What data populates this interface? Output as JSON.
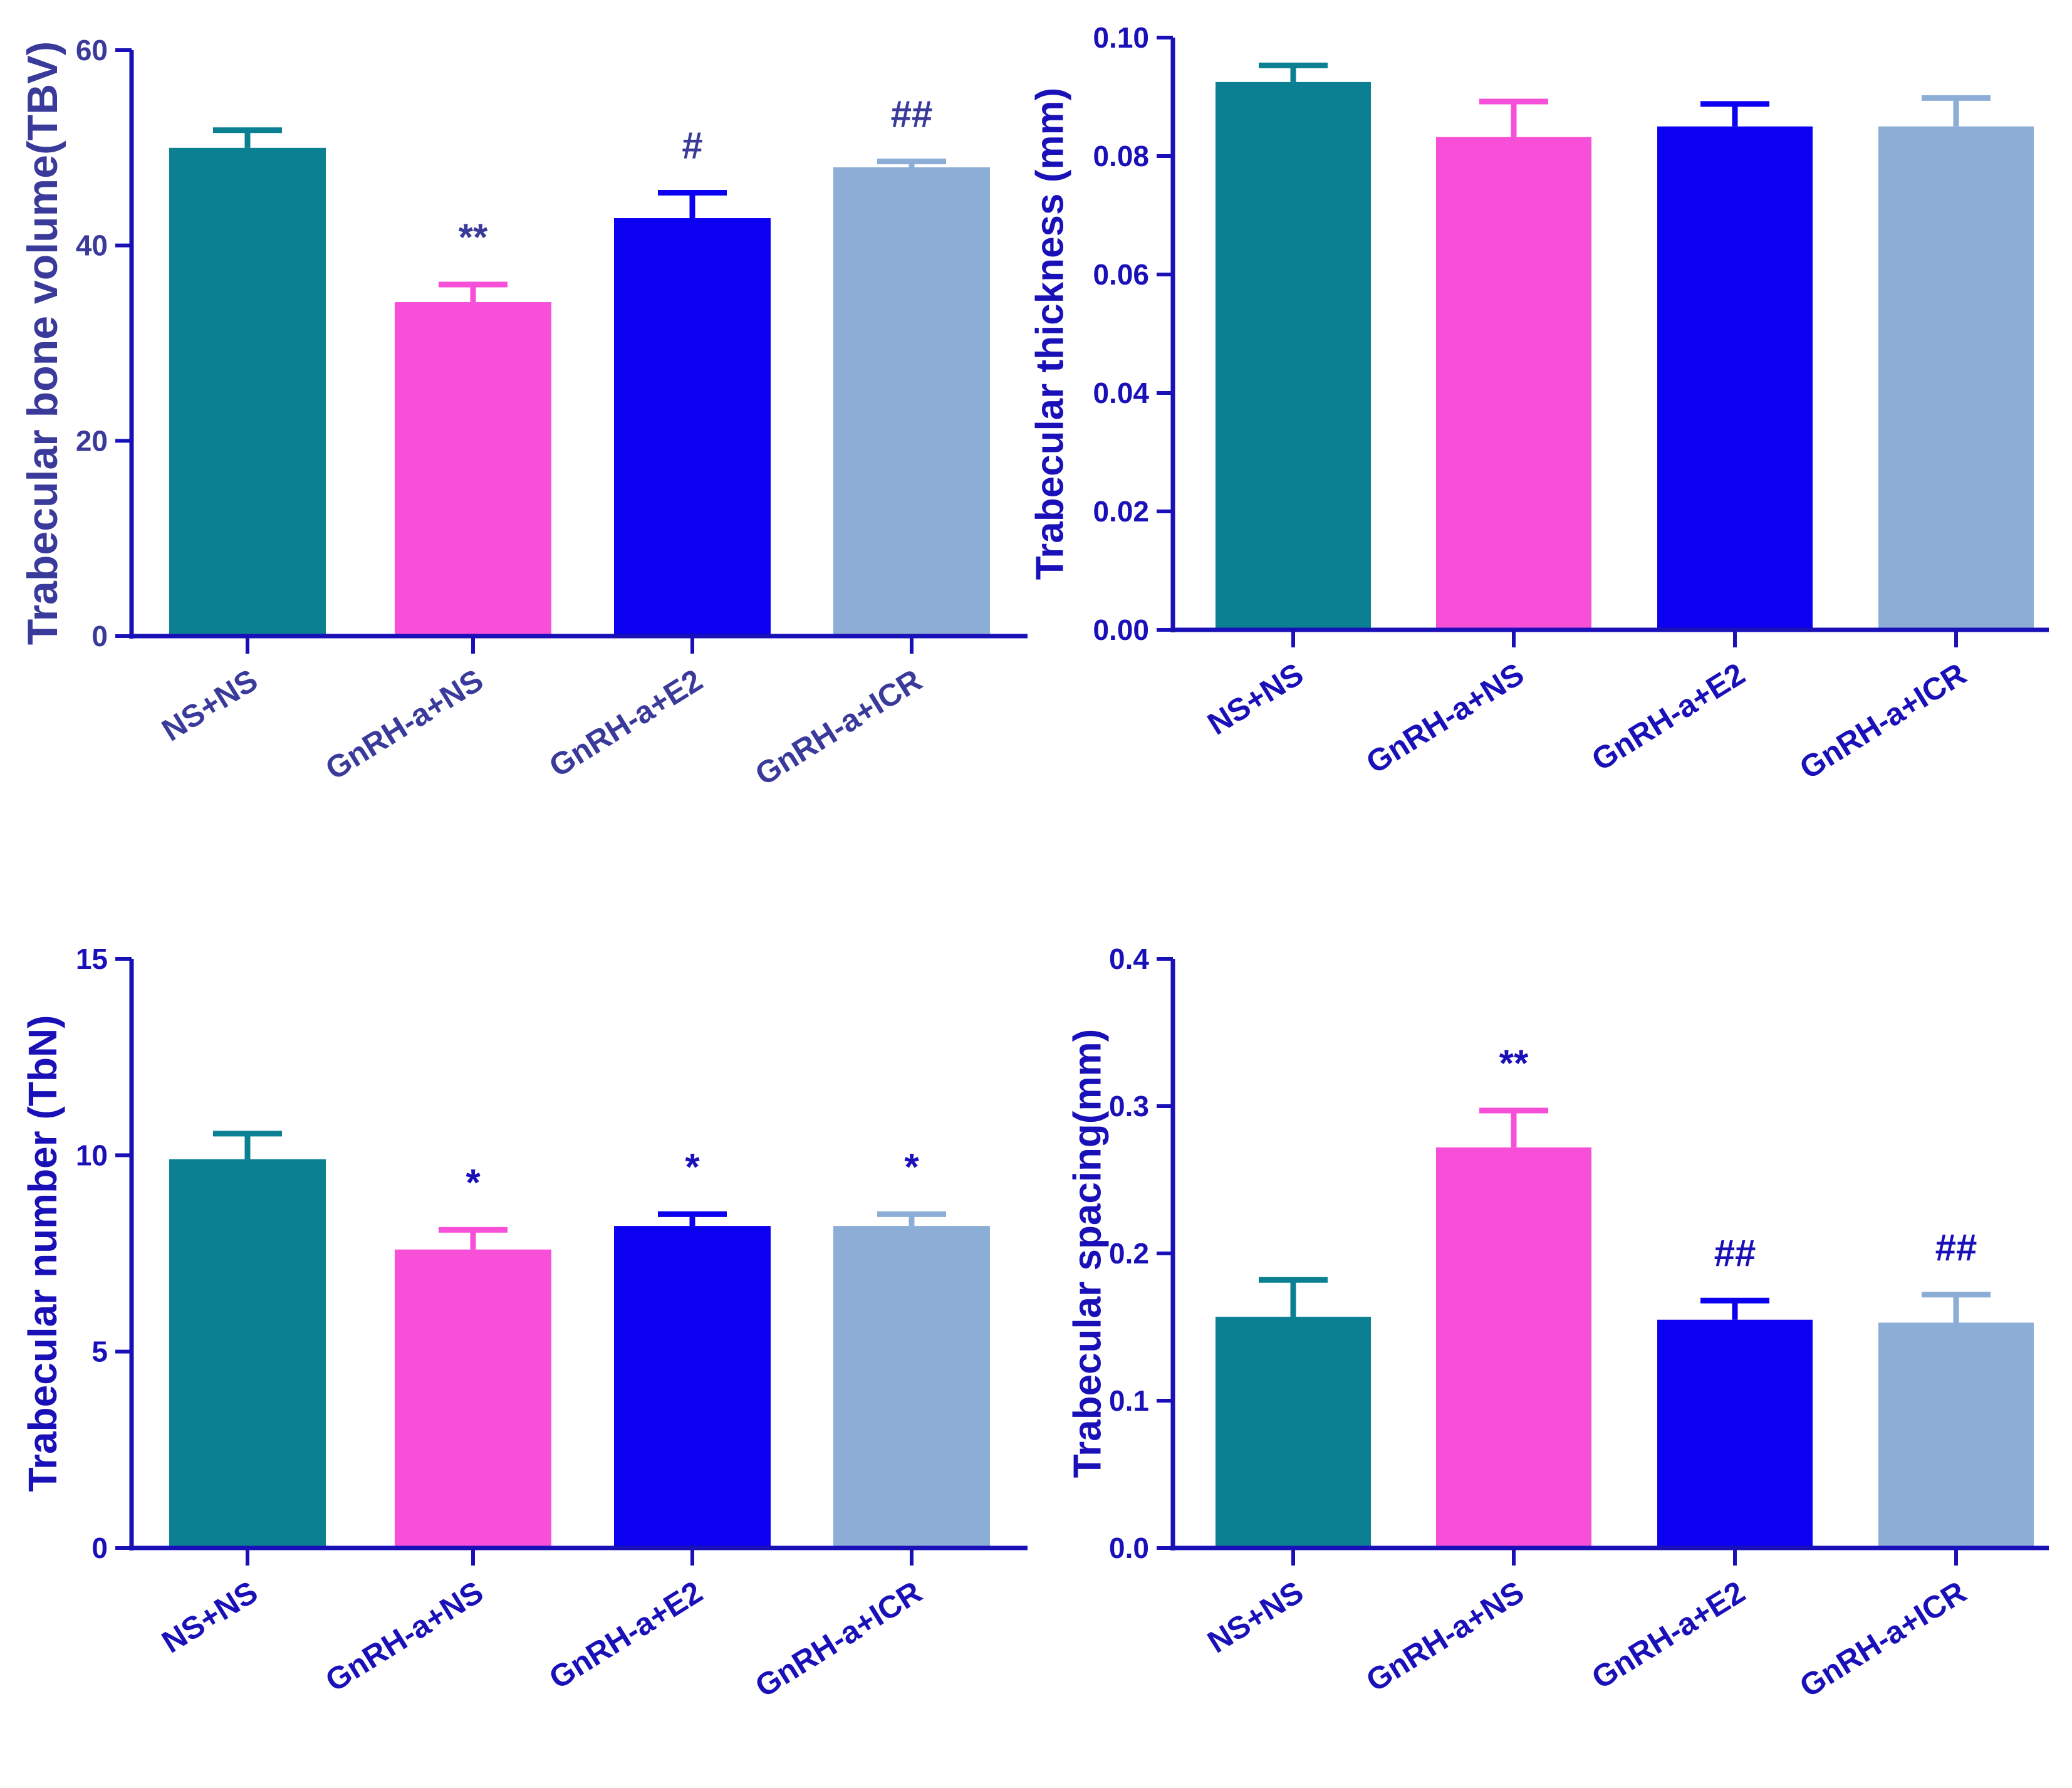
{
  "colors": {
    "axis": "#1a10b8",
    "text": "#1a10b8",
    "text_faded": "#3a3a9a",
    "group_colors": [
      "#0c8093",
      "#f84fd8",
      "#0b00f0",
      "#8caed6"
    ]
  },
  "chart_data": [
    {
      "type": "bar",
      "title": "",
      "ylabel": "Trabecular bone volume(TBV)",
      "xlabel": "",
      "categories": [
        "NS+NS",
        "GnRH-a+NS",
        "GnRH-a+E2",
        "GnRH-a+ICR"
      ],
      "values": [
        50,
        34.2,
        42.8,
        48
      ],
      "errors": [
        1.8,
        1.8,
        2.6,
        0.6
      ],
      "annotations": [
        "",
        "**",
        "#",
        "##"
      ],
      "ylim": [
        0,
        60
      ],
      "yticks": [
        "0",
        "20",
        "40",
        "60"
      ],
      "ytick_values": [
        0,
        20,
        40,
        60
      ]
    },
    {
      "type": "bar",
      "title": "",
      "ylabel": "Trabecular thickness (mm)",
      "xlabel": "",
      "categories": [
        "NS+NS",
        "GnRH-a+NS",
        "GnRH-a+E2",
        "GnRH-a+ICR"
      ],
      "values": [
        0.0925,
        0.0832,
        0.085,
        0.085
      ],
      "errors": [
        0.0028,
        0.006,
        0.0038,
        0.0048
      ],
      "annotations": [
        "",
        "",
        "",
        ""
      ],
      "ylim": [
        0,
        0.1
      ],
      "yticks": [
        "0.00",
        "0.02",
        "0.04",
        "0.06",
        "0.08",
        "0.10"
      ],
      "ytick_values": [
        0,
        0.02,
        0.04,
        0.06,
        0.08,
        0.1
      ]
    },
    {
      "type": "bar",
      "title": "",
      "ylabel": "Trabecular number (TbN)",
      "xlabel": "",
      "categories": [
        "NS+NS",
        "GnRH-a+NS",
        "GnRH-a+E2",
        "GnRH-a+ICR"
      ],
      "values": [
        9.9,
        7.6,
        8.2,
        8.2
      ],
      "errors": [
        0.65,
        0.5,
        0.3,
        0.3
      ],
      "annotations": [
        "",
        "*",
        "*",
        "*"
      ],
      "ylim": [
        0,
        15
      ],
      "yticks": [
        "0",
        "5",
        "10",
        "15"
      ],
      "ytick_values": [
        0,
        5,
        10,
        15
      ]
    },
    {
      "type": "bar",
      "title": "",
      "ylabel": "Trabecular spacing(mm)",
      "xlabel": "",
      "categories": [
        "NS+NS",
        "GnRH-a+NS",
        "GnRH-a+E2",
        "GnRH-a+ICR"
      ],
      "values": [
        0.157,
        0.272,
        0.155,
        0.153
      ],
      "errors": [
        0.025,
        0.025,
        0.013,
        0.019
      ],
      "annotations": [
        "",
        "**",
        "##",
        "##"
      ],
      "ylim": [
        0,
        0.4
      ],
      "yticks": [
        "0.0",
        "0.1",
        "0.2",
        "0.3",
        "0.4"
      ],
      "ytick_values": [
        0,
        0.1,
        0.2,
        0.3,
        0.4
      ]
    }
  ]
}
